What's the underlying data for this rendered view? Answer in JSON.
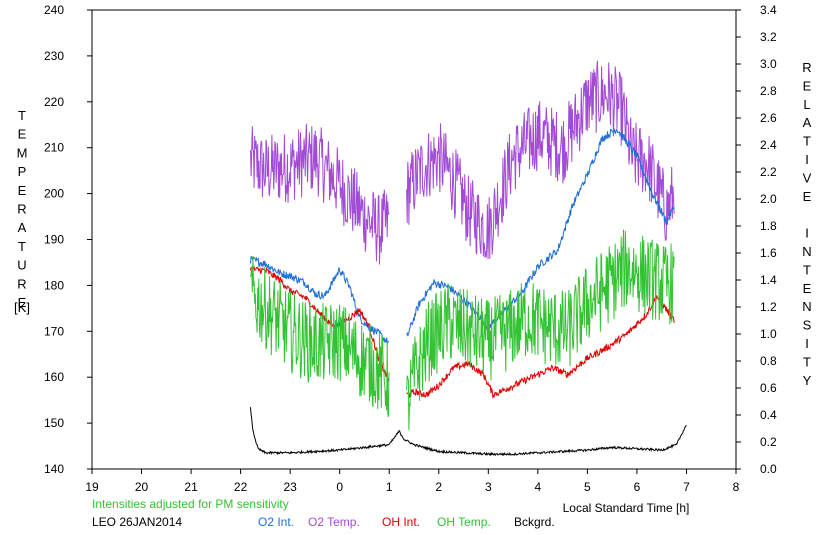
{
  "chart_data": {
    "type": "line",
    "site": "LEO",
    "date": "26JAN2014",
    "note": "Intensities adjusted for PM sensitivity",
    "xlabel": "Local Standard Time [h]",
    "ylabel_left": "TEMPERATURE",
    "ylabel_left_unit": "[K]",
    "ylabel_right": "RELATIVE INTENSITY",
    "x_ticks": [
      "19",
      "20",
      "21",
      "22",
      "23",
      "0",
      "1",
      "2",
      "3",
      "4",
      "5",
      "6",
      "7",
      "8"
    ],
    "x_range_hours": [
      19,
      32
    ],
    "y_left_ticks": [
      "240",
      "230",
      "220",
      "210",
      "200",
      "190",
      "180",
      "170",
      "160",
      "150",
      "140"
    ],
    "ylim_left": [
      140,
      240
    ],
    "y_right_ticks": [
      "3.4",
      "3.2",
      "3.0",
      "2.8",
      "2.6",
      "2.4",
      "2.2",
      "2.0",
      "1.8",
      "1.6",
      "1.4",
      "1.2",
      "1.0",
      "0.8",
      "0.6",
      "0.4",
      "0.2",
      "0.0"
    ],
    "ylim_right": [
      0.0,
      3.4
    ],
    "legend": [
      {
        "label": "LEO 26JAN2014",
        "color": "#000000"
      },
      {
        "label": "O2 Int.",
        "color": "#1f6fd6"
      },
      {
        "label": "O2 Temp.",
        "color": "#a24bd6"
      },
      {
        "label": "OH Int.",
        "color": "#e00000"
      },
      {
        "label": "OH Temp.",
        "color": "#33c233"
      },
      {
        "label": "Bckgrd.",
        "color": "#000000"
      }
    ],
    "series": [
      {
        "name": "O2 Temp.",
        "axis": "left",
        "color": "#a24bd6",
        "noise": 8,
        "segments": [
          {
            "x": [
              22.2,
              22.5,
              23.0,
              23.5,
              24.0,
              24.5,
              24.8,
              25.0
            ],
            "y": [
              207,
              205,
              206,
              208,
              202,
              195,
              192,
              194
            ]
          },
          {
            "x": [
              25.35,
              25.7,
              26.0,
              26.3,
              26.6,
              27.0,
              27.5,
              28.0,
              28.5,
              29.0,
              29.4,
              29.7,
              29.9,
              30.2,
              30.6,
              30.75
            ],
            "y": [
              200,
              206,
              208,
              203,
              196,
              192,
              208,
              213,
              210,
              220,
              222,
              218,
              208,
              207,
              196,
              200
            ]
          }
        ]
      },
      {
        "name": "O2 Int.",
        "axis": "right",
        "color": "#1f6fd6",
        "noise": 0.03,
        "segments": [
          {
            "x": [
              22.2,
              22.5,
              22.8,
              23.0,
              23.3,
              23.5,
              23.7,
              24.0,
              24.2,
              24.4,
              24.6,
              24.8,
              25.0
            ],
            "y": [
              1.55,
              1.52,
              1.45,
              1.43,
              1.38,
              1.3,
              1.28,
              1.48,
              1.35,
              1.12,
              1.05,
              1.0,
              0.93
            ]
          },
          {
            "x": [
              25.35,
              25.6,
              25.9,
              26.2,
              26.6,
              27.0,
              27.4,
              27.7,
              28.0,
              28.4,
              28.7,
              29.0,
              29.3,
              29.6,
              30.0,
              30.3,
              30.6,
              30.75
            ],
            "y": [
              0.97,
              1.22,
              1.38,
              1.35,
              1.22,
              1.05,
              1.2,
              1.32,
              1.5,
              1.62,
              1.95,
              2.18,
              2.45,
              2.52,
              2.32,
              2.05,
              1.83,
              1.95
            ]
          }
        ]
      },
      {
        "name": "OH Int.",
        "axis": "right",
        "color": "#e00000",
        "noise": 0.025,
        "segments": [
          {
            "x": [
              22.2,
              22.5,
              22.8,
              23.0,
              23.3,
              23.6,
              23.9,
              24.2,
              24.4,
              24.6,
              24.8,
              25.0
            ],
            "y": [
              1.48,
              1.47,
              1.4,
              1.32,
              1.27,
              1.15,
              1.05,
              1.12,
              1.18,
              1.05,
              0.8,
              0.65
            ]
          },
          {
            "x": [
              25.35,
              25.55,
              25.75,
              26.0,
              26.3,
              26.6,
              26.9,
              27.1,
              27.4,
              27.7,
              28.0,
              28.3,
              28.6,
              29.0,
              29.4,
              29.8,
              30.2,
              30.4,
              30.6,
              30.75
            ],
            "y": [
              0.55,
              0.57,
              0.55,
              0.62,
              0.75,
              0.78,
              0.7,
              0.55,
              0.6,
              0.65,
              0.7,
              0.75,
              0.7,
              0.82,
              0.9,
              1.0,
              1.15,
              1.28,
              1.18,
              1.1
            ]
          }
        ]
      },
      {
        "name": "OH Temp.",
        "axis": "left",
        "color": "#33c233",
        "noise": 9,
        "segments": [
          {
            "x": [
              22.2,
              22.5,
              22.8,
              23.0,
              23.3,
              23.6,
              24.0,
              24.3,
              24.6,
              24.8,
              25.0
            ],
            "y": [
              178,
              175,
              172,
              170,
              168,
              167,
              168,
              165,
              163,
              161,
              159
            ]
          },
          {
            "x": [
              25.35,
              25.5,
              25.8,
              26.2,
              26.6,
              27.0,
              27.4,
              27.8,
              28.2,
              28.6,
              29.0,
              29.4,
              29.8,
              30.2,
              30.6,
              30.75
            ],
            "y": [
              153,
              160,
              168,
              172,
              170,
              168,
              170,
              173,
              171,
              170,
              176,
              180,
              184,
              182,
              180,
              181
            ]
          }
        ]
      },
      {
        "name": "Bckgrd.",
        "axis": "right",
        "color": "#000000",
        "noise": 0.008,
        "segments": [
          {
            "x": [
              22.2,
              22.25,
              22.35,
              22.5,
              23.0,
              23.5,
              24.0,
              24.5,
              25.0,
              25.2,
              25.3,
              25.5,
              26.0,
              26.5,
              27.0,
              27.5,
              28.0,
              28.5,
              29.0,
              29.5,
              30.0,
              30.5,
              30.8,
              31.0
            ],
            "y": [
              0.45,
              0.28,
              0.15,
              0.12,
              0.12,
              0.13,
              0.14,
              0.16,
              0.18,
              0.28,
              0.22,
              0.18,
              0.13,
              0.12,
              0.11,
              0.11,
              0.12,
              0.13,
              0.14,
              0.16,
              0.15,
              0.14,
              0.18,
              0.33
            ]
          }
        ]
      }
    ]
  }
}
